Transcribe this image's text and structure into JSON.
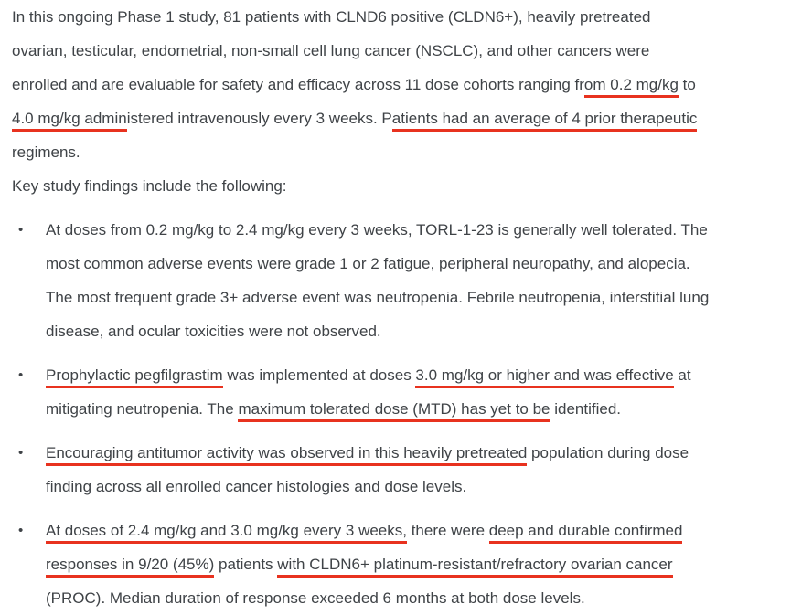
{
  "page": {
    "background": "#ffffff",
    "text_color": "#3f4347",
    "underline_color": "#e8321f"
  },
  "content": {
    "blocks": [
      {
        "type": "paragraph",
        "lines": [
          [
            {
              "t": "In this ongoing Phase 1 study, 81 patients with CLND6 positive (CLDN6+), heavily pretreated",
              "u": false
            }
          ],
          [
            {
              "t": "ovarian, testicular, endometrial, non-small cell lung cancer (NSCLC), and other cancers were",
              "u": false
            }
          ],
          [
            {
              "t": "enrolled and are evaluable for safety and efficacy across 11 dose cohorts ranging fr",
              "u": false
            },
            {
              "t": "om 0.2 mg/kg",
              "u": true
            },
            {
              "t": " to",
              "u": false
            }
          ],
          [
            {
              "t": "4.0 mg/kg admin",
              "u": true
            },
            {
              "t": "istered intravenously every 3 weeks. P",
              "u": false
            },
            {
              "t": "atients had an average of 4 prior therapeutic",
              "u": true
            }
          ],
          [
            {
              "t": "regimens.",
              "u": false
            }
          ]
        ]
      },
      {
        "type": "paragraph",
        "lines": [
          [
            {
              "t": "Key study findings include the following:",
              "u": false
            }
          ]
        ]
      },
      {
        "type": "bullet",
        "lines": [
          [
            {
              "t": "At doses from 0.2 mg/kg to 2.4 mg/kg every 3 weeks, TORL-1-23 is generally well tolerated. The",
              "u": false
            }
          ],
          [
            {
              "t": "most common adverse events were grade 1 or 2 fatigue, peripheral neuropathy, and alopecia.",
              "u": false
            }
          ],
          [
            {
              "t": "The most frequent grade 3+ adverse event was neutropenia. Febrile neutropenia, interstitial lung",
              "u": false
            }
          ],
          [
            {
              "t": "disease, and ocular toxicities were not observed.",
              "u": false
            }
          ]
        ]
      },
      {
        "type": "bullet",
        "lines": [
          [
            {
              "t": "Prophylactic pegfilgrastim",
              "u": true
            },
            {
              "t": " was implemented at doses ",
              "u": false
            },
            {
              "t": "3.0 mg/kg or higher and was effective",
              "u": true
            },
            {
              "t": " at",
              "u": false
            }
          ],
          [
            {
              "t": "mitigating neutropenia. The ",
              "u": false
            },
            {
              "t": "maximum tolerated dose (MTD) has yet to be",
              "u": true
            },
            {
              "t": " identified.",
              "u": false
            }
          ]
        ]
      },
      {
        "type": "bullet",
        "lines": [
          [
            {
              "t": "Encouraging antitumor activity was observed in this heavily pretreated",
              "u": true
            },
            {
              "t": " population during dose",
              "u": false
            }
          ],
          [
            {
              "t": "finding across all enrolled cancer histologies and dose levels.",
              "u": false
            }
          ]
        ]
      },
      {
        "type": "bullet",
        "lines": [
          [
            {
              "t": "At doses of 2.4 mg/kg and 3.0 mg/kg every 3 weeks,",
              "u": true
            },
            {
              "t": " there were ",
              "u": false
            },
            {
              "t": "deep and durable confirmed",
              "u": true
            }
          ],
          [
            {
              "t": "responses in 9/20 (45%)",
              "u": true
            },
            {
              "t": " patients ",
              "u": false
            },
            {
              "t": "with CLDN6+ platinum-resistant/refractory ovarian cancer",
              "u": true
            }
          ],
          [
            {
              "t": "(PROC). Median duration of response exceeded 6 months at both dose levels.",
              "u": false
            }
          ]
        ]
      }
    ],
    "bullet_glyph": "•"
  }
}
